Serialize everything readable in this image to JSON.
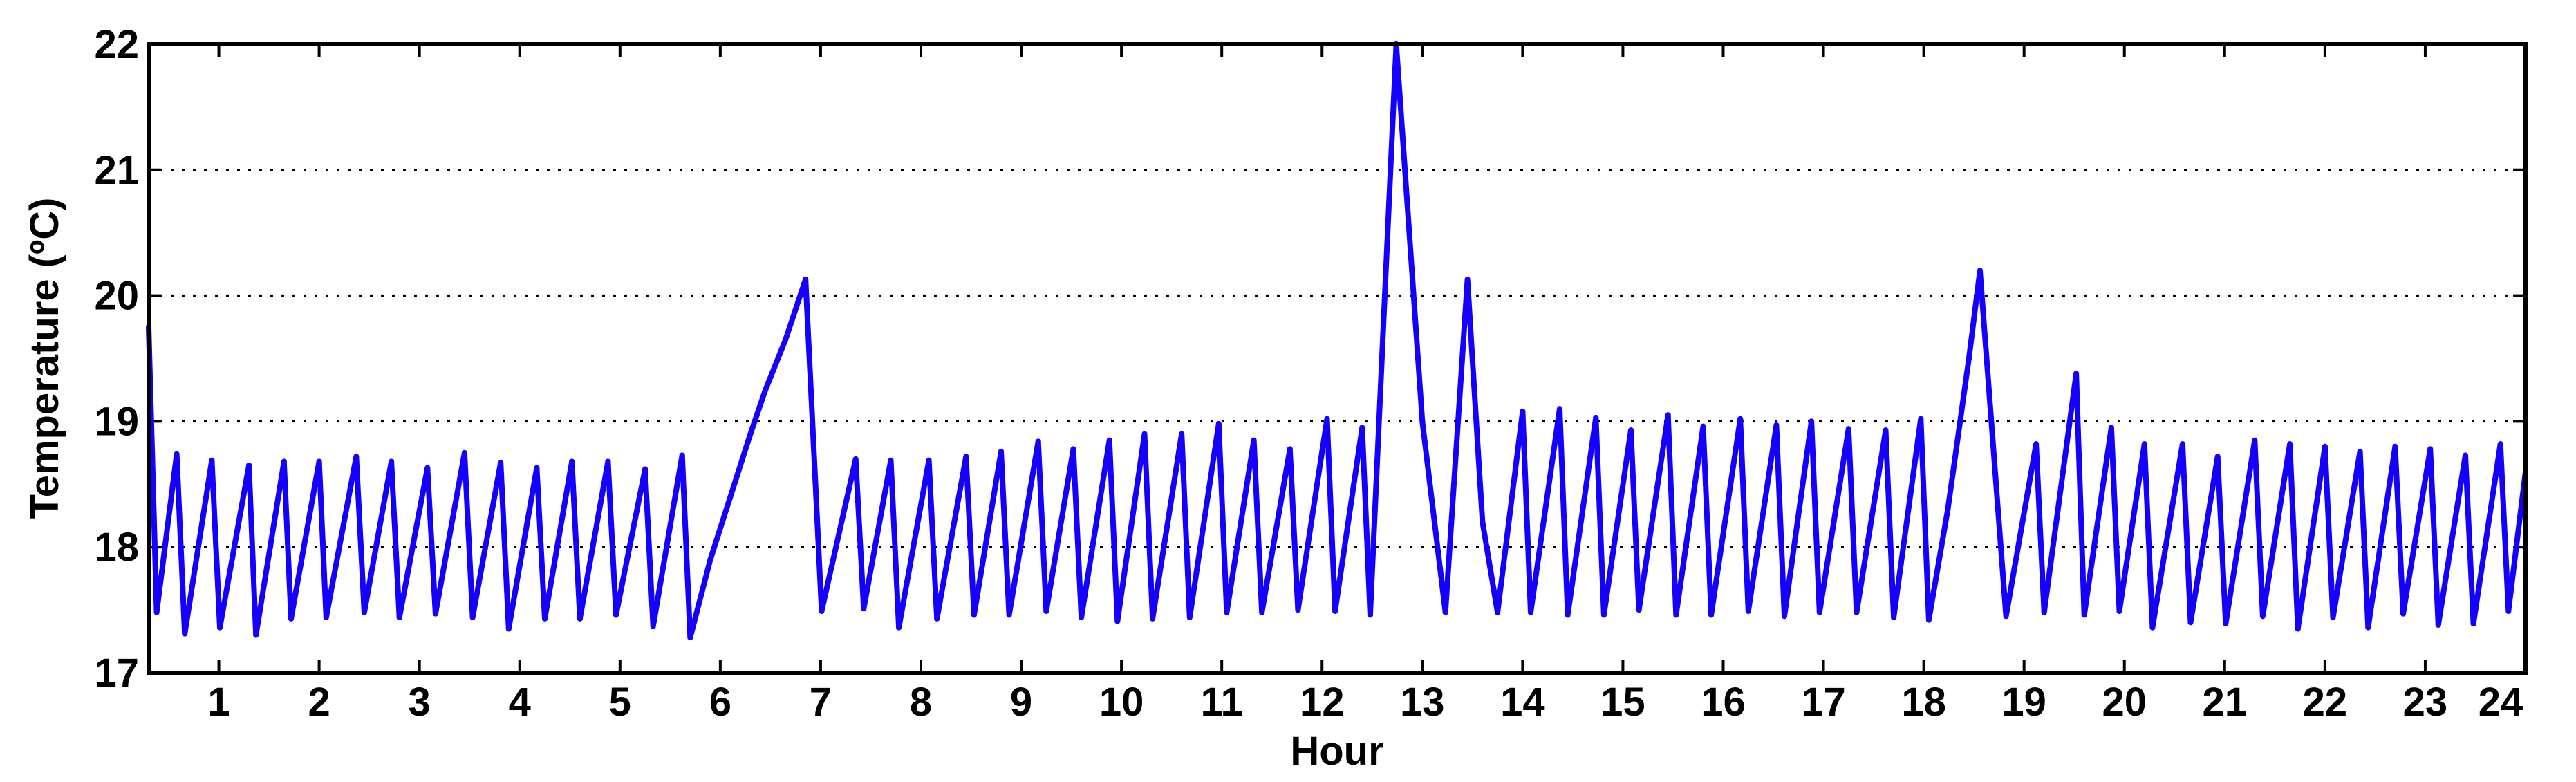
{
  "chart_data": {
    "type": "line",
    "title": "",
    "xlabel": "Hour",
    "ylabel": "Temperature (ºC)",
    "xlim": [
      0.3,
      24
    ],
    "ylim": [
      17,
      22
    ],
    "grid": {
      "x": false,
      "y": true,
      "style": "dotted"
    },
    "x_ticks": [
      1,
      2,
      3,
      4,
      5,
      6,
      7,
      8,
      9,
      10,
      11,
      12,
      13,
      14,
      15,
      16,
      17,
      18,
      19,
      20,
      21,
      22,
      23,
      24
    ],
    "x_tick_labels": [
      "1",
      "2",
      "3",
      "4",
      "5",
      "6",
      "7",
      "8",
      "9",
      "10",
      "11",
      "12",
      "13",
      "14",
      "15",
      "16",
      "17",
      "18",
      "19",
      "20",
      "21",
      "22",
      "23",
      "24"
    ],
    "y_ticks": [
      17,
      18,
      19,
      20,
      21,
      22
    ],
    "y_tick_labels": [
      "17",
      "18",
      "19",
      "20",
      "21",
      "22"
    ],
    "series": [
      {
        "color": "#1400ff",
        "points": [
          [
            0.3,
            19.75
          ],
          [
            0.38,
            17.48
          ],
          [
            0.58,
            18.74
          ],
          [
            0.66,
            17.31
          ],
          [
            0.93,
            18.69
          ],
          [
            1.01,
            17.36
          ],
          [
            1.3,
            18.65
          ],
          [
            1.37,
            17.3
          ],
          [
            1.65,
            18.68
          ],
          [
            1.72,
            17.43
          ],
          [
            2.0,
            18.68
          ],
          [
            2.07,
            17.44
          ],
          [
            2.37,
            18.72
          ],
          [
            2.45,
            17.48
          ],
          [
            2.72,
            18.68
          ],
          [
            2.8,
            17.44
          ],
          [
            3.08,
            18.63
          ],
          [
            3.16,
            17.47
          ],
          [
            3.45,
            18.75
          ],
          [
            3.53,
            17.44
          ],
          [
            3.81,
            18.67
          ],
          [
            3.89,
            17.35
          ],
          [
            4.17,
            18.63
          ],
          [
            4.25,
            17.43
          ],
          [
            4.52,
            18.68
          ],
          [
            4.6,
            17.43
          ],
          [
            4.88,
            18.68
          ],
          [
            4.96,
            17.46
          ],
          [
            5.25,
            18.62
          ],
          [
            5.33,
            17.37
          ],
          [
            5.62,
            18.73
          ],
          [
            5.7,
            17.28
          ],
          [
            5.9,
            17.9
          ],
          [
            6.1,
            18.4
          ],
          [
            6.3,
            18.9
          ],
          [
            6.45,
            19.25
          ],
          [
            6.65,
            19.65
          ],
          [
            6.85,
            20.13
          ],
          [
            7.01,
            17.49
          ],
          [
            7.35,
            18.7
          ],
          [
            7.43,
            17.51
          ],
          [
            7.7,
            18.69
          ],
          [
            7.78,
            17.36
          ],
          [
            8.08,
            18.69
          ],
          [
            8.16,
            17.43
          ],
          [
            8.45,
            18.72
          ],
          [
            8.53,
            17.46
          ],
          [
            8.8,
            18.76
          ],
          [
            8.88,
            17.46
          ],
          [
            9.17,
            18.84
          ],
          [
            9.25,
            17.49
          ],
          [
            9.52,
            18.78
          ],
          [
            9.6,
            17.44
          ],
          [
            9.88,
            18.85
          ],
          [
            9.96,
            17.41
          ],
          [
            10.23,
            18.9
          ],
          [
            10.31,
            17.43
          ],
          [
            10.6,
            18.9
          ],
          [
            10.68,
            17.44
          ],
          [
            10.97,
            18.98
          ],
          [
            11.05,
            17.48
          ],
          [
            11.32,
            18.85
          ],
          [
            11.4,
            17.48
          ],
          [
            11.68,
            18.78
          ],
          [
            11.76,
            17.5
          ],
          [
            12.05,
            19.02
          ],
          [
            12.13,
            17.49
          ],
          [
            12.4,
            18.95
          ],
          [
            12.48,
            17.46
          ],
          [
            12.74,
            22.0
          ],
          [
            13.0,
            19.0
          ],
          [
            13.23,
            17.48
          ],
          [
            13.45,
            20.13
          ],
          [
            13.6,
            18.2
          ],
          [
            13.75,
            17.48
          ],
          [
            14.0,
            19.08
          ],
          [
            14.08,
            17.48
          ],
          [
            14.37,
            19.1
          ],
          [
            14.45,
            17.46
          ],
          [
            14.73,
            19.03
          ],
          [
            14.81,
            17.46
          ],
          [
            15.08,
            18.93
          ],
          [
            15.16,
            17.5
          ],
          [
            15.45,
            19.05
          ],
          [
            15.53,
            17.46
          ],
          [
            15.8,
            18.96
          ],
          [
            15.88,
            17.46
          ],
          [
            16.17,
            19.02
          ],
          [
            16.25,
            17.49
          ],
          [
            16.53,
            18.97
          ],
          [
            16.61,
            17.45
          ],
          [
            16.88,
            19.0
          ],
          [
            16.96,
            17.48
          ],
          [
            17.25,
            18.94
          ],
          [
            17.33,
            17.48
          ],
          [
            17.62,
            18.93
          ],
          [
            17.7,
            17.44
          ],
          [
            17.97,
            19.02
          ],
          [
            18.05,
            17.42
          ],
          [
            18.24,
            18.3
          ],
          [
            18.45,
            19.5
          ],
          [
            18.56,
            20.2
          ],
          [
            18.82,
            17.45
          ],
          [
            19.12,
            18.82
          ],
          [
            19.2,
            17.48
          ],
          [
            19.52,
            19.38
          ],
          [
            19.6,
            17.46
          ],
          [
            19.87,
            18.95
          ],
          [
            19.95,
            17.49
          ],
          [
            20.2,
            18.82
          ],
          [
            20.28,
            17.36
          ],
          [
            20.58,
            18.82
          ],
          [
            20.66,
            17.4
          ],
          [
            20.93,
            18.72
          ],
          [
            21.01,
            17.39
          ],
          [
            21.3,
            18.85
          ],
          [
            21.38,
            17.45
          ],
          [
            21.65,
            18.82
          ],
          [
            21.73,
            17.35
          ],
          [
            22.0,
            18.8
          ],
          [
            22.08,
            17.44
          ],
          [
            22.35,
            18.76
          ],
          [
            22.43,
            17.36
          ],
          [
            22.7,
            18.8
          ],
          [
            22.78,
            17.47
          ],
          [
            23.05,
            18.78
          ],
          [
            23.13,
            17.38
          ],
          [
            23.4,
            18.73
          ],
          [
            23.48,
            17.39
          ],
          [
            23.75,
            18.82
          ],
          [
            23.83,
            17.49
          ],
          [
            24.0,
            18.6
          ]
        ]
      }
    ]
  }
}
